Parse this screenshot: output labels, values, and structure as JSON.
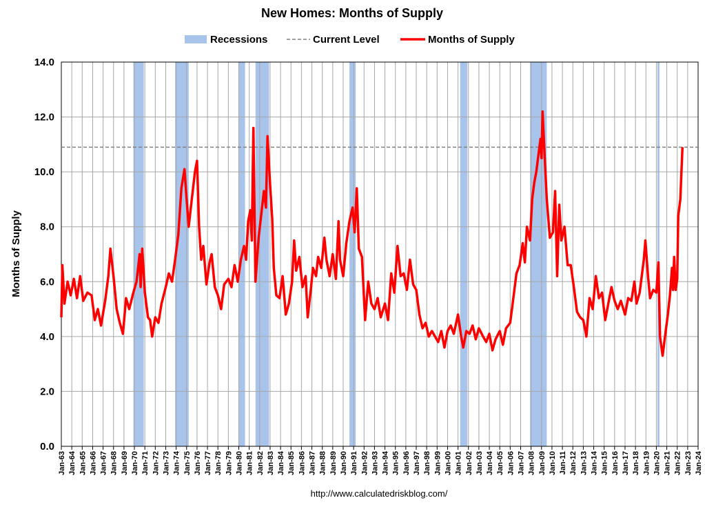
{
  "chart_data": {
    "type": "line",
    "title": "New Homes: Months of Supply",
    "y_label": "Months of Supply",
    "source": "http://www.calculatedriskblog.com/",
    "grid": true,
    "legend_position": "top",
    "xlim": [
      1963,
      2024
    ],
    "ylim": [
      0,
      14
    ],
    "yticks": [
      {
        "value": 0,
        "label": "0.0"
      },
      {
        "value": 2,
        "label": "2.0"
      },
      {
        "value": 4,
        "label": "4.0"
      },
      {
        "value": 6,
        "label": "6.0"
      },
      {
        "value": 8,
        "label": "8.0"
      },
      {
        "value": 10,
        "label": "10.0"
      },
      {
        "value": 12,
        "label": "12.0"
      },
      {
        "value": 14,
        "label": "14.0"
      }
    ],
    "xticks": [
      {
        "value": 1963,
        "label": "Jan-63"
      },
      {
        "value": 1964,
        "label": "Jan-64"
      },
      {
        "value": 1965,
        "label": "Jan-65"
      },
      {
        "value": 1966,
        "label": "Jan-66"
      },
      {
        "value": 1967,
        "label": "Jan-67"
      },
      {
        "value": 1968,
        "label": "Jan-68"
      },
      {
        "value": 1969,
        "label": "Jan-69"
      },
      {
        "value": 1970,
        "label": "Jan-70"
      },
      {
        "value": 1971,
        "label": "Jan-71"
      },
      {
        "value": 1972,
        "label": "Jan-72"
      },
      {
        "value": 1973,
        "label": "Jan-73"
      },
      {
        "value": 1974,
        "label": "Jan-74"
      },
      {
        "value": 1975,
        "label": "Jan-75"
      },
      {
        "value": 1976,
        "label": "Jan-76"
      },
      {
        "value": 1977,
        "label": "Jan-77"
      },
      {
        "value": 1978,
        "label": "Jan-78"
      },
      {
        "value": 1979,
        "label": "Jan-79"
      },
      {
        "value": 1980,
        "label": "Jan-80"
      },
      {
        "value": 1981,
        "label": "Jan-81"
      },
      {
        "value": 1982,
        "label": "Jan-82"
      },
      {
        "value": 1983,
        "label": "Jan-83"
      },
      {
        "value": 1984,
        "label": "Jan-84"
      },
      {
        "value": 1985,
        "label": "Jan-85"
      },
      {
        "value": 1986,
        "label": "Jan-86"
      },
      {
        "value": 1987,
        "label": "Jan-87"
      },
      {
        "value": 1988,
        "label": "Jan-88"
      },
      {
        "value": 1989,
        "label": "Jan-89"
      },
      {
        "value": 1990,
        "label": "Jan-90"
      },
      {
        "value": 1991,
        "label": "Jan-91"
      },
      {
        "value": 1992,
        "label": "Jan-92"
      },
      {
        "value": 1993,
        "label": "Jan-93"
      },
      {
        "value": 1994,
        "label": "Jan-94"
      },
      {
        "value": 1995,
        "label": "Jan-95"
      },
      {
        "value": 1996,
        "label": "Jan-96"
      },
      {
        "value": 1997,
        "label": "Jan-97"
      },
      {
        "value": 1998,
        "label": "Jan-98"
      },
      {
        "value": 1999,
        "label": "Jan-99"
      },
      {
        "value": 2000,
        "label": "Jan-00"
      },
      {
        "value": 2001,
        "label": "Jan-01"
      },
      {
        "value": 2002,
        "label": "Jan-02"
      },
      {
        "value": 2003,
        "label": "Jan-03"
      },
      {
        "value": 2004,
        "label": "Jan-04"
      },
      {
        "value": 2005,
        "label": "Jan-05"
      },
      {
        "value": 2006,
        "label": "Jan-06"
      },
      {
        "value": 2007,
        "label": "Jan-07"
      },
      {
        "value": 2008,
        "label": "Jan-08"
      },
      {
        "value": 2009,
        "label": "Jan-09"
      },
      {
        "value": 2010,
        "label": "Jan-10"
      },
      {
        "value": 2011,
        "label": "Jan-11"
      },
      {
        "value": 2012,
        "label": "Jan-12"
      },
      {
        "value": 2013,
        "label": "Jan-13"
      },
      {
        "value": 2014,
        "label": "Jan-14"
      },
      {
        "value": 2015,
        "label": "Jan-15"
      },
      {
        "value": 2016,
        "label": "Jan-16"
      },
      {
        "value": 2017,
        "label": "Jan-17"
      },
      {
        "value": 2018,
        "label": "Jan-18"
      },
      {
        "value": 2019,
        "label": "Jan-19"
      },
      {
        "value": 2020,
        "label": "Jan-20"
      },
      {
        "value": 2021,
        "label": "Jan-21"
      },
      {
        "value": 2022,
        "label": "Jan-22"
      },
      {
        "value": 2023,
        "label": "Jan-23"
      },
      {
        "value": 2024,
        "label": "Jan-24"
      }
    ],
    "recessions": {
      "name": "Recessions",
      "color": "#a9c4eb",
      "spans": [
        [
          1969.9,
          1970.9
        ],
        [
          1973.9,
          1975.2
        ],
        [
          1980.0,
          1980.6
        ],
        [
          1981.6,
          1982.9
        ],
        [
          1990.6,
          1991.2
        ],
        [
          2001.2,
          2001.9
        ],
        [
          2007.9,
          2009.5
        ],
        [
          2020.1,
          2020.3
        ]
      ]
    },
    "reference_line": {
      "name": "Current Level",
      "color": "#808080",
      "value": 10.9
    },
    "x": [
      1963.0,
      1963.1,
      1963.3,
      1963.6,
      1963.9,
      1964.2,
      1964.5,
      1964.8,
      1965.1,
      1965.5,
      1965.9,
      1966.2,
      1966.5,
      1966.8,
      1967.2,
      1967.5,
      1967.7,
      1968.0,
      1968.3,
      1968.6,
      1968.9,
      1969.2,
      1969.5,
      1969.9,
      1970.2,
      1970.5,
      1970.6,
      1970.75,
      1971.0,
      1971.3,
      1971.5,
      1971.7,
      1972.0,
      1972.3,
      1972.6,
      1973.0,
      1973.3,
      1973.6,
      1973.9,
      1974.2,
      1974.5,
      1974.8,
      1975.0,
      1975.2,
      1975.5,
      1975.8,
      1976.0,
      1976.2,
      1976.4,
      1976.6,
      1976.9,
      1977.2,
      1977.4,
      1977.7,
      1978.0,
      1978.3,
      1978.6,
      1979.0,
      1979.3,
      1979.6,
      1979.9,
      1980.2,
      1980.5,
      1980.7,
      1980.9,
      1981.1,
      1981.25,
      1981.4,
      1981.6,
      1981.9,
      1982.2,
      1982.4,
      1982.6,
      1982.75,
      1983.0,
      1983.2,
      1983.35,
      1983.6,
      1983.9,
      1984.2,
      1984.5,
      1984.8,
      1985.1,
      1985.3,
      1985.5,
      1985.8,
      1986.1,
      1986.4,
      1986.6,
      1986.9,
      1987.1,
      1987.4,
      1987.6,
      1987.9,
      1988.2,
      1988.4,
      1988.7,
      1989.0,
      1989.3,
      1989.55,
      1989.7,
      1990.0,
      1990.3,
      1990.6,
      1990.9,
      1991.1,
      1991.3,
      1991.5,
      1991.8,
      1992.1,
      1992.4,
      1992.7,
      1993.0,
      1993.3,
      1993.6,
      1994.0,
      1994.3,
      1994.6,
      1994.9,
      1995.2,
      1995.5,
      1995.8,
      1996.1,
      1996.4,
      1996.7,
      1997.0,
      1997.3,
      1997.6,
      1997.9,
      1998.2,
      1998.5,
      1998.8,
      1999.1,
      1999.4,
      1999.7,
      2000.0,
      2000.3,
      2000.6,
      2001.0,
      2001.3,
      2001.5,
      2001.8,
      2002.1,
      2002.4,
      2002.7,
      2003.0,
      2003.4,
      2003.7,
      2004.0,
      2004.3,
      2004.6,
      2005.0,
      2005.3,
      2005.6,
      2006.0,
      2006.3,
      2006.6,
      2006.9,
      2007.2,
      2007.4,
      2007.6,
      2007.9,
      2008.1,
      2008.3,
      2008.5,
      2008.7,
      2008.9,
      2009.0,
      2009.1,
      2009.3,
      2009.5,
      2009.8,
      2010.1,
      2010.3,
      2010.5,
      2010.7,
      2010.9,
      2011.2,
      2011.5,
      2011.8,
      2012.1,
      2012.4,
      2012.7,
      2013.0,
      2013.3,
      2013.6,
      2013.9,
      2014.2,
      2014.5,
      2014.8,
      2015.1,
      2015.4,
      2015.7,
      2016.0,
      2016.3,
      2016.6,
      2017.0,
      2017.3,
      2017.6,
      2017.9,
      2018.1,
      2018.4,
      2018.8,
      2018.95,
      2019.2,
      2019.4,
      2019.7,
      2020.0,
      2020.2,
      2020.35,
      2020.6,
      2020.9,
      2021.1,
      2021.3,
      2021.5,
      2021.6,
      2021.7,
      2021.85,
      2022.0,
      2022.1,
      2022.3,
      2022.5
    ],
    "series": [
      {
        "name": "Months of Supply",
        "color": "#ff0000",
        "values": [
          4.7,
          6.6,
          5.2,
          6.0,
          5.5,
          6.1,
          5.4,
          6.2,
          5.3,
          5.6,
          5.5,
          4.6,
          5.0,
          4.4,
          5.3,
          6.2,
          7.2,
          6.2,
          5.0,
          4.5,
          4.1,
          5.4,
          5.0,
          5.6,
          6.0,
          7.0,
          5.8,
          7.2,
          5.6,
          4.7,
          4.6,
          4.0,
          4.7,
          4.5,
          5.2,
          5.8,
          6.3,
          6.0,
          6.8,
          7.7,
          9.4,
          10.1,
          9.0,
          8.0,
          9.0,
          10.0,
          10.4,
          8.0,
          6.8,
          7.3,
          5.9,
          6.7,
          7.0,
          5.8,
          5.5,
          5.0,
          5.9,
          6.1,
          5.8,
          6.6,
          6.0,
          6.8,
          7.3,
          6.8,
          8.2,
          8.6,
          7.5,
          11.6,
          6.0,
          7.6,
          8.6,
          9.3,
          8.7,
          11.3,
          9.5,
          8.3,
          6.5,
          5.5,
          5.4,
          6.2,
          4.8,
          5.2,
          6.0,
          7.5,
          6.4,
          6.9,
          5.8,
          6.2,
          4.7,
          5.7,
          6.5,
          6.2,
          6.9,
          6.5,
          7.6,
          6.8,
          6.2,
          7.0,
          6.1,
          8.2,
          6.8,
          6.2,
          7.4,
          8.2,
          8.7,
          7.8,
          9.4,
          7.2,
          6.9,
          4.6,
          6.0,
          5.2,
          5.0,
          5.4,
          4.7,
          5.2,
          4.6,
          6.3,
          5.6,
          7.3,
          6.2,
          6.3,
          5.7,
          6.8,
          5.9,
          5.7,
          4.8,
          4.3,
          4.5,
          4.0,
          4.2,
          4.0,
          3.8,
          4.2,
          3.6,
          4.2,
          4.4,
          4.1,
          4.8,
          4.0,
          3.6,
          4.2,
          4.1,
          4.4,
          3.9,
          4.3,
          4.0,
          3.8,
          4.1,
          3.5,
          3.9,
          4.2,
          3.7,
          4.3,
          4.5,
          5.4,
          6.3,
          6.6,
          7.4,
          6.7,
          8.0,
          7.5,
          9.0,
          9.6,
          10.0,
          10.6,
          11.2,
          10.5,
          12.2,
          10.6,
          9.0,
          7.6,
          7.8,
          9.3,
          6.2,
          8.8,
          7.5,
          8.0,
          6.6,
          6.6,
          5.8,
          4.9,
          4.7,
          4.6,
          4.0,
          5.4,
          5.0,
          6.2,
          5.4,
          5.6,
          4.6,
          5.2,
          5.8,
          5.3,
          5.0,
          5.3,
          4.8,
          5.4,
          5.3,
          6.0,
          5.2,
          5.6,
          6.8,
          7.5,
          6.2,
          5.4,
          5.7,
          5.6,
          6.7,
          4.0,
          3.3,
          4.2,
          4.8,
          5.5,
          6.5,
          5.7,
          6.9,
          5.7,
          6.1,
          8.4,
          9.0,
          10.9
        ]
      }
    ]
  }
}
